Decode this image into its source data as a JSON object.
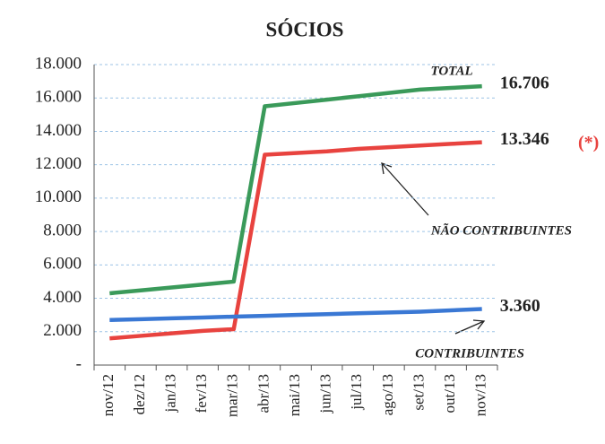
{
  "chart_data": {
    "type": "line",
    "title": "SÓCIOS",
    "categories": [
      "nov/12",
      "dez/12",
      "jan/13",
      "fev/13",
      "mar/13",
      "abr/13",
      "mai/13",
      "jun/13",
      "jul/13",
      "ago/13",
      "set/13",
      "out/13",
      "nov/13"
    ],
    "series": [
      {
        "name": "TOTAL",
        "color": "#3a9a5a",
        "values": [
          4300,
          4475,
          4650,
          4825,
          5000,
          15500,
          15700,
          15900,
          16100,
          16300,
          16500,
          16600,
          16706
        ],
        "value_labels": [
          null,
          null,
          null,
          null,
          null,
          null,
          null,
          null,
          null,
          null,
          null,
          null,
          "16.706"
        ]
      },
      {
        "name": "NÃO CONTRIBUINTES",
        "color": "#e8433f",
        "values": [
          1600,
          1750,
          1900,
          2050,
          2150,
          12600,
          12700,
          12800,
          12950,
          13050,
          13150,
          13250,
          13346
        ],
        "value_labels": [
          null,
          null,
          null,
          null,
          null,
          null,
          null,
          null,
          null,
          null,
          null,
          null,
          "13.346"
        ]
      },
      {
        "name": "CONTRIBUINTES",
        "color": "#3a78d4",
        "values": [
          2700,
          2750,
          2800,
          2850,
          2900,
          2950,
          3000,
          3050,
          3100,
          3150,
          3200,
          3280,
          3360
        ],
        "value_labels": [
          null,
          null,
          null,
          null,
          null,
          null,
          null,
          null,
          null,
          null,
          null,
          null,
          "3.360"
        ]
      }
    ],
    "annotations": [
      "(*)"
    ],
    "ylim": [
      0,
      18000
    ],
    "yticks": [
      {
        "value": 0,
        "label": "-"
      },
      {
        "value": 2000,
        "label": "2.000"
      },
      {
        "value": 4000,
        "label": "4.000"
      },
      {
        "value": 6000,
        "label": "6.000"
      },
      {
        "value": 8000,
        "label": "8.000"
      },
      {
        "value": 10000,
        "label": "10.000"
      },
      {
        "value": 12000,
        "label": "12.000"
      },
      {
        "value": 14000,
        "label": "14.000"
      },
      {
        "value": 16000,
        "label": "16.000"
      },
      {
        "value": 18000,
        "label": "18.000"
      }
    ],
    "grid": true
  }
}
